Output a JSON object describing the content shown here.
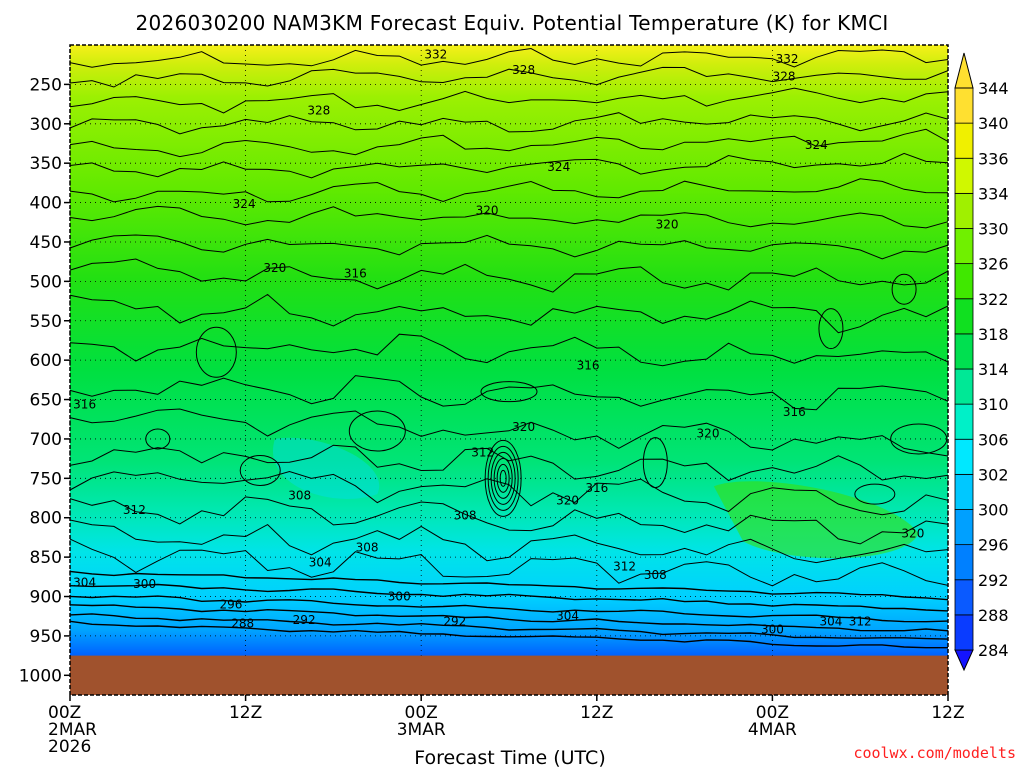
{
  "chart_data": {
    "type": "heatmap",
    "title": "2026030200 NAM3KM Forecast Equiv. Potential Temperature (K) for KMCI",
    "xlabel": "Forecast Time (UTC)",
    "ylabel": "",
    "credit": "coolwx.com/modelts",
    "x_ticks": [
      {
        "hour": 0,
        "line1": "00Z",
        "line2": "2MAR",
        "line3": "2026"
      },
      {
        "hour": 12,
        "line1": "12Z",
        "line2": "",
        "line3": ""
      },
      {
        "hour": 24,
        "line1": "00Z",
        "line2": "3MAR",
        "line3": ""
      },
      {
        "hour": 36,
        "line1": "12Z",
        "line2": "",
        "line3": ""
      },
      {
        "hour": 48,
        "line1": "00Z",
        "line2": "4MAR",
        "line3": ""
      },
      {
        "hour": 60,
        "line1": "12Z",
        "line2": "",
        "line3": ""
      }
    ],
    "xlim": [
      0,
      60
    ],
    "y_ticks": [
      "250",
      "300",
      "350",
      "400",
      "450",
      "500",
      "550",
      "600",
      "650",
      "700",
      "750",
      "800",
      "850",
      "900",
      "950",
      "1000"
    ],
    "y_values": [
      250,
      300,
      350,
      400,
      450,
      500,
      550,
      600,
      650,
      700,
      750,
      800,
      850,
      900,
      950,
      1000
    ],
    "ylim_hPa": [
      200,
      1025
    ],
    "below_ground_hPa": 975,
    "colorbar_levels": [
      284,
      288,
      292,
      296,
      300,
      302,
      306,
      310,
      314,
      318,
      322,
      326,
      330,
      334,
      336,
      340,
      344
    ],
    "colorbar_colors": [
      "#1414ff",
      "#0a3cff",
      "#0a5aff",
      "#0080ff",
      "#00a0ff",
      "#00c8ff",
      "#00e8ff",
      "#00f0c8",
      "#00e896",
      "#00e050",
      "#10e020",
      "#40e800",
      "#70f000",
      "#a0f000",
      "#d0f800",
      "#f0f000",
      "#ffe030"
    ],
    "contour_labels": [
      {
        "text": "332",
        "hour": 25.0,
        "hPa": 212
      },
      {
        "text": "332",
        "hour": 49.0,
        "hPa": 218
      },
      {
        "text": "328",
        "hour": 31.0,
        "hPa": 232
      },
      {
        "text": "328",
        "hour": 48.8,
        "hPa": 240
      },
      {
        "text": "328",
        "hour": 17.0,
        "hPa": 283
      },
      {
        "text": "324",
        "hour": 51.0,
        "hPa": 327
      },
      {
        "text": "324",
        "hour": 33.4,
        "hPa": 355
      },
      {
        "text": "324",
        "hour": 11.9,
        "hPa": 402
      },
      {
        "text": "320",
        "hour": 28.5,
        "hPa": 410
      },
      {
        "text": "320",
        "hour": 40.8,
        "hPa": 428
      },
      {
        "text": "320",
        "hour": 14.0,
        "hPa": 483
      },
      {
        "text": "316",
        "hour": 19.5,
        "hPa": 490
      },
      {
        "text": "316",
        "hour": 35.4,
        "hPa": 607
      },
      {
        "text": "316",
        "hour": 1.0,
        "hPa": 656
      },
      {
        "text": "316",
        "hour": 49.5,
        "hPa": 666
      },
      {
        "text": "320",
        "hour": 31.0,
        "hPa": 685
      },
      {
        "text": "320",
        "hour": 43.6,
        "hPa": 693
      },
      {
        "text": "312",
        "hour": 28.2,
        "hPa": 717
      },
      {
        "text": "316",
        "hour": 36.0,
        "hPa": 762
      },
      {
        "text": "320",
        "hour": 34.0,
        "hPa": 778
      },
      {
        "text": "308",
        "hour": 15.7,
        "hPa": 772
      },
      {
        "text": "312",
        "hour": 4.4,
        "hPa": 790
      },
      {
        "text": "308",
        "hour": 27.0,
        "hPa": 797
      },
      {
        "text": "320",
        "hour": 57.6,
        "hPa": 820
      },
      {
        "text": "308",
        "hour": 20.3,
        "hPa": 838
      },
      {
        "text": "304",
        "hour": 17.1,
        "hPa": 857
      },
      {
        "text": "312",
        "hour": 37.9,
        "hPa": 862
      },
      {
        "text": "308",
        "hour": 40.0,
        "hPa": 873
      },
      {
        "text": "304",
        "hour": 1.0,
        "hPa": 882
      },
      {
        "text": "300",
        "hour": 5.1,
        "hPa": 884
      },
      {
        "text": "300",
        "hour": 22.5,
        "hPa": 900
      },
      {
        "text": "296",
        "hour": 11.0,
        "hPa": 910
      },
      {
        "text": "304",
        "hour": 34.0,
        "hPa": 925
      },
      {
        "text": "288",
        "hour": 11.8,
        "hPa": 934
      },
      {
        "text": "292",
        "hour": 16.0,
        "hPa": 930
      },
      {
        "text": "292",
        "hour": 26.3,
        "hPa": 932
      },
      {
        "text": "304",
        "hour": 52.0,
        "hPa": 932
      },
      {
        "text": "312",
        "hour": 54.0,
        "hPa": 932
      },
      {
        "text": "300",
        "hour": 48.0,
        "hPa": 942
      }
    ]
  }
}
